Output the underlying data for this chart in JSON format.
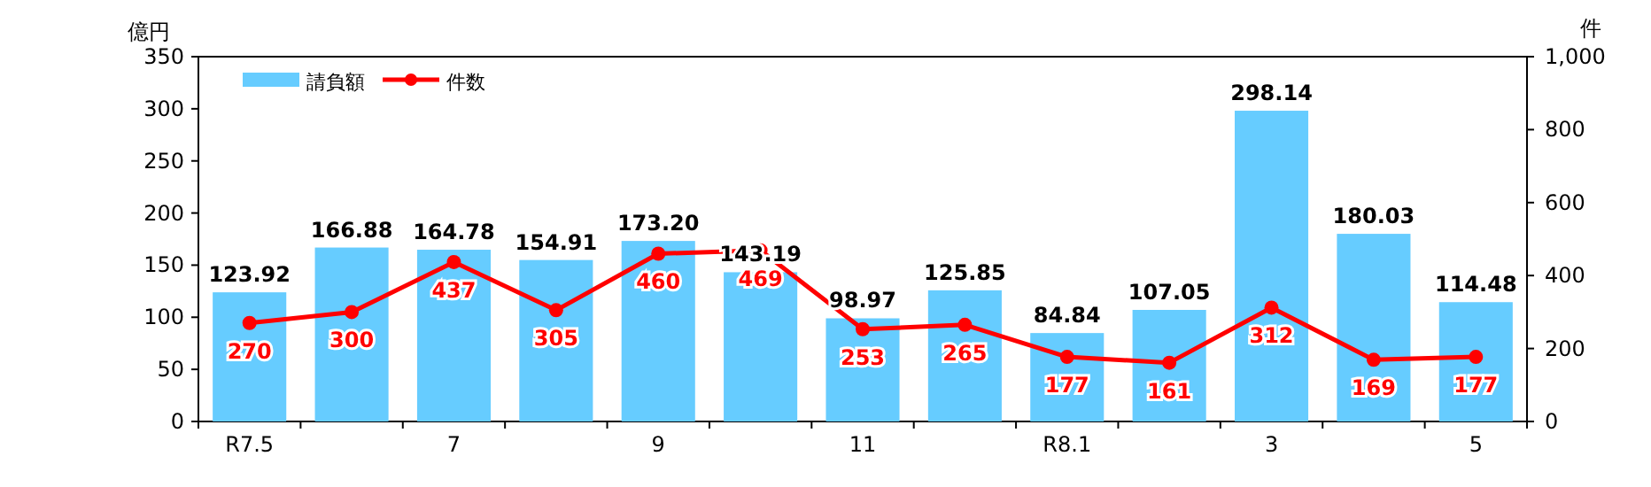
{
  "chart_data": {
    "type": "bar",
    "ylabel": "億円",
    "y2label": "件",
    "categories": [
      "R7.5",
      null,
      "7",
      null,
      "9",
      null,
      "11",
      null,
      "R8.1",
      null,
      "3",
      null,
      "5"
    ],
    "series": [
      {
        "name": "請負額",
        "color": "#66ccff",
        "values": [
          123.92,
          166.88,
          164.78,
          154.91,
          173.2,
          143.19,
          98.97,
          125.85,
          84.84,
          107.05,
          298.14,
          180.03,
          114.48
        ],
        "value_labels": [
          "123.92",
          "166.88",
          "164.78",
          "154.91",
          "173.20",
          "143.19",
          "98.97",
          "125.85",
          "84.84",
          "107.05",
          "298.14",
          "180.03",
          "114.48"
        ]
      },
      {
        "name": "件数",
        "type": "line",
        "axis": "y2",
        "color": "#ff0000",
        "marker": "circle",
        "values": [
          270,
          300,
          437,
          305,
          460,
          469,
          253,
          265,
          177,
          161,
          312,
          169,
          177
        ]
      }
    ],
    "ylim": [
      0,
      350
    ],
    "yticks": [
      0,
      50,
      100,
      150,
      200,
      250,
      300,
      350
    ],
    "y2lim": [
      0,
      1000
    ],
    "y2ticks": [
      0,
      200,
      400,
      600,
      800,
      {
        "value": 1000,
        "label": "1,000"
      }
    ],
    "data_labels": true,
    "legend": "top left",
    "grid": false
  }
}
